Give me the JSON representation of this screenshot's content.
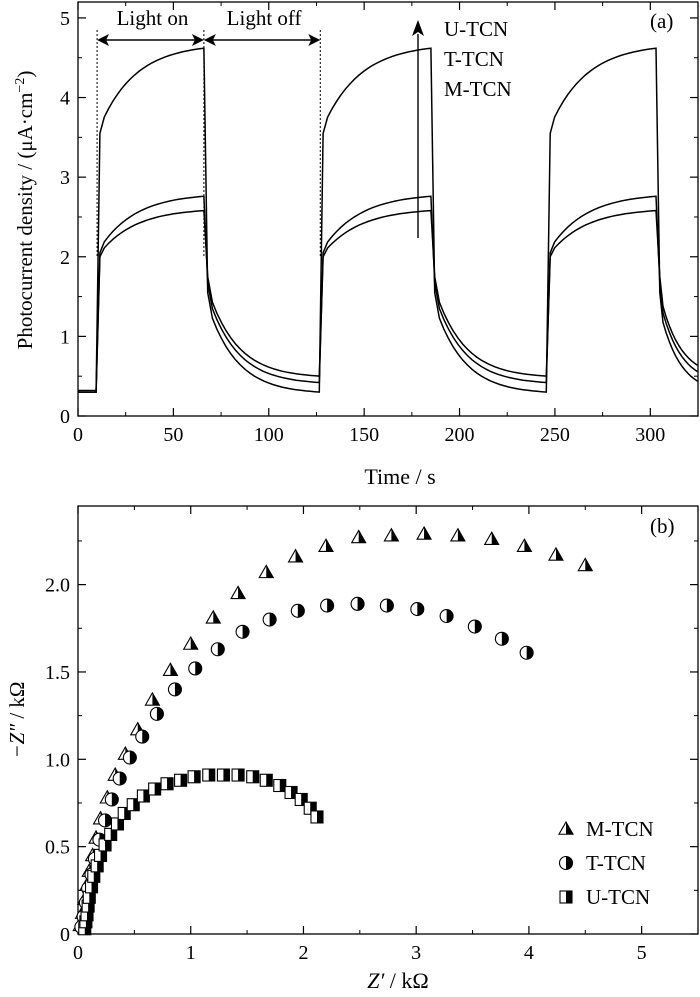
{
  "chart_data": [
    {
      "type": "line",
      "panel_label": "(a)",
      "xlabel": "Time / s",
      "ylabel": "Photocurrent density / (μA·cm",
      "ylabel_sup": "−2",
      "ylabel_close": ")",
      "xlim": [
        0,
        325
      ],
      "ylim": [
        0,
        5.2
      ],
      "xticks": [
        0,
        50,
        100,
        150,
        200,
        250,
        300
      ],
      "yticks": [
        0,
        1,
        2,
        3,
        4,
        5
      ],
      "annotations": {
        "light_on": "Light on",
        "light_off": "Light off",
        "on_start": 10,
        "on_end": 66,
        "off_end": 127
      },
      "legend": {
        "entries": [
          "U-TCN",
          "T-TCN",
          "M-TCN"
        ],
        "arrow": "up"
      },
      "cycles": [
        {
          "on": 10,
          "off": 66
        },
        {
          "on": 127,
          "off": 185
        },
        {
          "on": 246,
          "off": 303
        }
      ],
      "series": [
        {
          "name": "U-TCN",
          "base": 0.3,
          "jump": 3.55,
          "peak": 4.62,
          "dark_end": 0.3
        },
        {
          "name": "T-TCN",
          "base": 0.32,
          "jump": 2.05,
          "peak": 2.76,
          "dark_end": 0.42
        },
        {
          "name": "M-TCN",
          "base": 0.3,
          "jump": 2.0,
          "peak": 2.58,
          "dark_end": 0.5
        }
      ]
    },
    {
      "type": "scatter",
      "panel_label": "(b)",
      "xlabel_italic": "Z′",
      "xlabel_unit": " / kΩ",
      "ylabel_italic": "−Z″",
      "ylabel_unit": " / kΩ",
      "xlim": [
        0,
        5.5
      ],
      "ylim": [
        0,
        2.45
      ],
      "xticks": [
        0,
        1,
        2,
        3,
        4,
        5
      ],
      "yticks": [
        "0",
        "0.5",
        "1.0",
        "1.5",
        "2.0"
      ],
      "legend": {
        "entries": [
          {
            "name": "M-TCN",
            "marker": "triangle"
          },
          {
            "name": "T-TCN",
            "marker": "circle"
          },
          {
            "name": "U-TCN",
            "marker": "square"
          }
        ]
      },
      "series": [
        {
          "name": "M-TCN",
          "marker": "triangle",
          "points": [
            [
              0.02,
              0.05
            ],
            [
              0.04,
              0.12
            ],
            [
              0.06,
              0.2
            ],
            [
              0.08,
              0.28
            ],
            [
              0.1,
              0.36
            ],
            [
              0.13,
              0.45
            ],
            [
              0.16,
              0.55
            ],
            [
              0.2,
              0.66
            ],
            [
              0.26,
              0.78
            ],
            [
              0.33,
              0.91
            ],
            [
              0.42,
              1.03
            ],
            [
              0.53,
              1.17
            ],
            [
              0.66,
              1.34
            ],
            [
              0.82,
              1.51
            ],
            [
              1.0,
              1.66
            ],
            [
              1.2,
              1.81
            ],
            [
              1.42,
              1.95
            ],
            [
              1.67,
              2.07
            ],
            [
              1.93,
              2.16
            ],
            [
              2.2,
              2.22
            ],
            [
              2.49,
              2.27
            ],
            [
              2.78,
              2.28
            ],
            [
              3.07,
              2.29
            ],
            [
              3.37,
              2.28
            ],
            [
              3.67,
              2.26
            ],
            [
              3.96,
              2.22
            ],
            [
              4.24,
              2.17
            ],
            [
              4.5,
              2.11
            ]
          ]
        },
        {
          "name": "T-TCN",
          "marker": "circle",
          "points": [
            [
              0.03,
              0.04
            ],
            [
              0.05,
              0.1
            ],
            [
              0.07,
              0.18
            ],
            [
              0.09,
              0.26
            ],
            [
              0.12,
              0.34
            ],
            [
              0.15,
              0.43
            ],
            [
              0.19,
              0.54
            ],
            [
              0.24,
              0.65
            ],
            [
              0.3,
              0.77
            ],
            [
              0.37,
              0.89
            ],
            [
              0.46,
              1.01
            ],
            [
              0.57,
              1.13
            ],
            [
              0.7,
              1.26
            ],
            [
              0.86,
              1.4
            ],
            [
              1.04,
              1.52
            ],
            [
              1.24,
              1.63
            ],
            [
              1.46,
              1.73
            ],
            [
              1.7,
              1.8
            ],
            [
              1.95,
              1.85
            ],
            [
              2.21,
              1.88
            ],
            [
              2.48,
              1.89
            ],
            [
              2.74,
              1.88
            ],
            [
              3.01,
              1.86
            ],
            [
              3.27,
              1.82
            ],
            [
              3.52,
              1.76
            ],
            [
              3.76,
              1.69
            ],
            [
              3.98,
              1.61
            ]
          ]
        },
        {
          "name": "U-TCN",
          "marker": "square",
          "points": [
            [
              0.06,
              0.03
            ],
            [
              0.07,
              0.07
            ],
            [
              0.08,
              0.11
            ],
            [
              0.09,
              0.16
            ],
            [
              0.1,
              0.21
            ],
            [
              0.12,
              0.27
            ],
            [
              0.14,
              0.33
            ],
            [
              0.17,
              0.39
            ],
            [
              0.2,
              0.45
            ],
            [
              0.24,
              0.51
            ],
            [
              0.29,
              0.57
            ],
            [
              0.35,
              0.63
            ],
            [
              0.41,
              0.69
            ],
            [
              0.49,
              0.74
            ],
            [
              0.58,
              0.79
            ],
            [
              0.68,
              0.83
            ],
            [
              0.79,
              0.86
            ],
            [
              0.91,
              0.88
            ],
            [
              1.03,
              0.9
            ],
            [
              1.16,
              0.91
            ],
            [
              1.29,
              0.91
            ],
            [
              1.42,
              0.91
            ],
            [
              1.55,
              0.9
            ],
            [
              1.67,
              0.88
            ],
            [
              1.79,
              0.85
            ],
            [
              1.89,
              0.81
            ],
            [
              1.98,
              0.77
            ],
            [
              2.06,
              0.72
            ],
            [
              2.12,
              0.67
            ]
          ]
        }
      ]
    }
  ]
}
